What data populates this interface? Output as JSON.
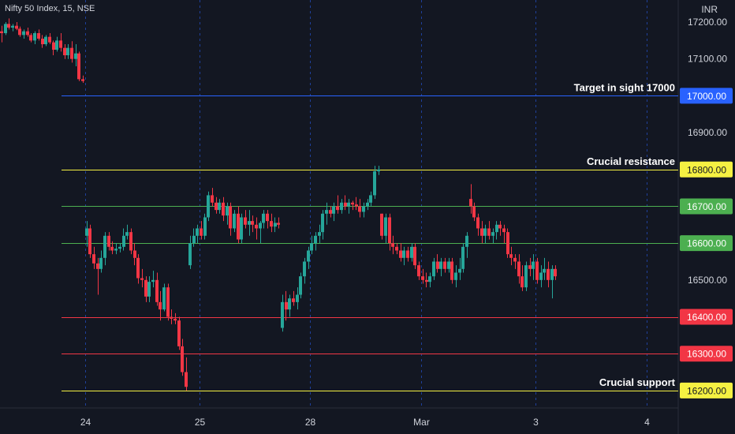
{
  "header": {
    "symbol_line": "Nifty 50 Index, 15, NSE",
    "currency": "INR"
  },
  "chart_data": {
    "type": "candlestick",
    "symbol": "Nifty 50 Index",
    "interval": "15",
    "exchange": "NSE",
    "currency": "INR",
    "ylim": [
      16170,
      17250
    ],
    "y_ticks": [
      "17200.00",
      "17100.00",
      "17000.00",
      "16900.00",
      "16800.00",
      "16700.00",
      "16600.00",
      "16500.00",
      "16400.00",
      "16300.00",
      "16200.00"
    ],
    "y_tick_values": [
      17200,
      17100,
      17000,
      16900,
      16800,
      16700,
      16600,
      16500,
      16400,
      16300,
      16200
    ],
    "x_ticks": [
      "24",
      "25",
      "28",
      "Mar",
      "3",
      "4"
    ],
    "x_tick_candle_index": [
      23,
      54,
      84,
      114,
      145,
      175
    ],
    "levels": [
      {
        "value": 17000,
        "label": "17000.00",
        "annotation": "Target in sight 17000",
        "color": "#2962ff",
        "text_color": "#ffffff"
      },
      {
        "value": 16800,
        "label": "16800.00",
        "annotation": "Crucial resistance",
        "color": "#f5f142",
        "text_color": "#131722"
      },
      {
        "value": 16700,
        "label": "16700.00",
        "annotation": "",
        "color": "#4caf50",
        "text_color": "#ffffff"
      },
      {
        "value": 16600,
        "label": "16600.00",
        "annotation": "",
        "color": "#4caf50",
        "text_color": "#ffffff"
      },
      {
        "value": 16400,
        "label": "16400.00",
        "annotation": "",
        "color": "#f23645",
        "text_color": "#ffffff"
      },
      {
        "value": 16300,
        "label": "16300.00",
        "annotation": "",
        "color": "#f23645",
        "text_color": "#ffffff"
      },
      {
        "value": 16200,
        "label": "16200.00",
        "annotation": "Crucial support",
        "color": "#f5f142",
        "text_color": "#131722"
      }
    ],
    "colors": {
      "up": "#26a69a",
      "down": "#f23645",
      "background": "#131722",
      "text": "#d1d4dc"
    },
    "candles": [
      [
        17175,
        17190,
        17145,
        17170
      ],
      [
        17170,
        17200,
        17165,
        17195
      ],
      [
        17195,
        17210,
        17180,
        17185
      ],
      [
        17185,
        17195,
        17175,
        17190
      ],
      [
        17190,
        17200,
        17178,
        17182
      ],
      [
        17182,
        17188,
        17160,
        17165
      ],
      [
        17165,
        17180,
        17155,
        17175
      ],
      [
        17175,
        17185,
        17160,
        17165
      ],
      [
        17165,
        17170,
        17145,
        17150
      ],
      [
        17150,
        17175,
        17140,
        17170
      ],
      [
        17170,
        17180,
        17150,
        17155
      ],
      [
        17155,
        17165,
        17130,
        17140
      ],
      [
        17140,
        17165,
        17135,
        17160
      ],
      [
        17160,
        17170,
        17140,
        17145
      ],
      [
        17145,
        17150,
        17110,
        17125
      ],
      [
        17125,
        17160,
        17120,
        17150
      ],
      [
        17150,
        17170,
        17120,
        17130
      ],
      [
        17130,
        17140,
        17100,
        17110
      ],
      [
        17110,
        17140,
        17100,
        17130
      ],
      [
        17130,
        17148,
        17090,
        17100
      ],
      [
        17100,
        17140,
        17080,
        17115
      ],
      [
        17115,
        17120,
        17040,
        17045
      ],
      [
        17045,
        17055,
        17035,
        17040
      ],
      [
        16620,
        16660,
        16590,
        16640
      ],
      [
        16640,
        16650,
        16560,
        16570
      ],
      [
        16570,
        16590,
        16530,
        16545
      ],
      [
        16545,
        16560,
        16460,
        16530
      ],
      [
        16530,
        16580,
        16520,
        16560
      ],
      [
        16560,
        16630,
        16540,
        16620
      ],
      [
        16620,
        16630,
        16580,
        16590
      ],
      [
        16590,
        16605,
        16570,
        16580
      ],
      [
        16580,
        16600,
        16570,
        16585
      ],
      [
        16585,
        16600,
        16575,
        16590
      ],
      [
        16590,
        16640,
        16580,
        16620
      ],
      [
        16620,
        16650,
        16610,
        16630
      ],
      [
        16630,
        16640,
        16570,
        16580
      ],
      [
        16580,
        16600,
        16540,
        16560
      ],
      [
        16560,
        16570,
        16490,
        16505
      ],
      [
        16505,
        16530,
        16480,
        16500
      ],
      [
        16500,
        16510,
        16440,
        16455
      ],
      [
        16455,
        16510,
        16440,
        16495
      ],
      [
        16495,
        16525,
        16480,
        16500
      ],
      [
        16500,
        16520,
        16430,
        16440
      ],
      [
        16440,
        16470,
        16390,
        16420
      ],
      [
        16420,
        16490,
        16415,
        16480
      ],
      [
        16480,
        16490,
        16390,
        16400
      ],
      [
        16400,
        16420,
        16380,
        16395
      ],
      [
        16395,
        16410,
        16380,
        16390
      ],
      [
        16390,
        16400,
        16310,
        16320
      ],
      [
        16320,
        16340,
        16240,
        16250
      ],
      [
        16250,
        16290,
        16200,
        16210
      ],
      [
        16540,
        16620,
        16530,
        16600
      ],
      [
        16600,
        16640,
        16590,
        16620
      ],
      [
        16620,
        16650,
        16600,
        16640
      ],
      [
        16640,
        16660,
        16610,
        16620
      ],
      [
        16620,
        16680,
        16610,
        16670
      ],
      [
        16670,
        16740,
        16660,
        16730
      ],
      [
        16730,
        16750,
        16700,
        16710
      ],
      [
        16710,
        16725,
        16680,
        16690
      ],
      [
        16690,
        16720,
        16680,
        16710
      ],
      [
        16710,
        16725,
        16660,
        16675
      ],
      [
        16675,
        16710,
        16650,
        16700
      ],
      [
        16700,
        16710,
        16620,
        16640
      ],
      [
        16640,
        16690,
        16630,
        16680
      ],
      [
        16680,
        16700,
        16600,
        16610
      ],
      [
        16610,
        16680,
        16600,
        16670
      ],
      [
        16670,
        16690,
        16640,
        16650
      ],
      [
        16650,
        16690,
        16620,
        16660
      ],
      [
        16660,
        16675,
        16630,
        16650
      ],
      [
        16650,
        16670,
        16610,
        16640
      ],
      [
        16640,
        16660,
        16600,
        16655
      ],
      [
        16655,
        16690,
        16640,
        16680
      ],
      [
        16680,
        16690,
        16640,
        16660
      ],
      [
        16660,
        16680,
        16630,
        16645
      ],
      [
        16645,
        16670,
        16630,
        16655
      ],
      [
        16655,
        16670,
        16640,
        16650
      ],
      [
        16370,
        16460,
        16360,
        16440
      ],
      [
        16440,
        16470,
        16390,
        16420
      ],
      [
        16420,
        16460,
        16400,
        16450
      ],
      [
        16450,
        16470,
        16430,
        16440
      ],
      [
        16440,
        16480,
        16420,
        16460
      ],
      [
        16460,
        16520,
        16450,
        16510
      ],
      [
        16510,
        16560,
        16490,
        16550
      ],
      [
        16550,
        16590,
        16530,
        16580
      ],
      [
        16580,
        16620,
        16570,
        16600
      ],
      [
        16600,
        16630,
        16580,
        16620
      ],
      [
        16620,
        16650,
        16600,
        16630
      ],
      [
        16630,
        16690,
        16610,
        16680
      ],
      [
        16680,
        16710,
        16650,
        16690
      ],
      [
        16690,
        16700,
        16670,
        16680
      ],
      [
        16680,
        16710,
        16660,
        16700
      ],
      [
        16700,
        16730,
        16680,
        16690
      ],
      [
        16690,
        16720,
        16680,
        16710
      ],
      [
        16710,
        16730,
        16690,
        16700
      ],
      [
        16700,
        16720,
        16680,
        16710
      ],
      [
        16710,
        16715,
        16690,
        16705
      ],
      [
        16705,
        16725,
        16690,
        16700
      ],
      [
        16700,
        16720,
        16670,
        16685
      ],
      [
        16685,
        16710,
        16670,
        16700
      ],
      [
        16700,
        16720,
        16690,
        16710
      ],
      [
        16710,
        16740,
        16700,
        16730
      ],
      [
        16730,
        16810,
        16720,
        16795
      ],
      [
        16795,
        16810,
        16785,
        16800
      ],
      [
        16680,
        16680,
        16610,
        16620
      ],
      [
        16620,
        16680,
        16600,
        16670
      ],
      [
        16670,
        16680,
        16580,
        16600
      ],
      [
        16600,
        16620,
        16570,
        16590
      ],
      [
        16590,
        16600,
        16570,
        16580
      ],
      [
        16580,
        16600,
        16550,
        16560
      ],
      [
        16560,
        16590,
        16540,
        16580
      ],
      [
        16580,
        16590,
        16550,
        16560
      ],
      [
        16560,
        16600,
        16550,
        16590
      ],
      [
        16590,
        16600,
        16530,
        16540
      ],
      [
        16540,
        16550,
        16500,
        16510
      ],
      [
        16510,
        16530,
        16490,
        16500
      ],
      [
        16500,
        16520,
        16480,
        16495
      ],
      [
        16495,
        16520,
        16480,
        16510
      ],
      [
        16510,
        16560,
        16500,
        16550
      ],
      [
        16550,
        16570,
        16520,
        16530
      ],
      [
        16530,
        16560,
        16510,
        16550
      ],
      [
        16550,
        16560,
        16520,
        16530
      ],
      [
        16530,
        16560,
        16520,
        16550
      ],
      [
        16550,
        16560,
        16490,
        16500
      ],
      [
        16500,
        16540,
        16480,
        16520
      ],
      [
        16520,
        16560,
        16500,
        16530
      ],
      [
        16530,
        16600,
        16520,
        16590
      ],
      [
        16590,
        16630,
        16560,
        16620
      ],
      [
        16720,
        16760,
        16680,
        16700
      ],
      [
        16700,
        16710,
        16660,
        16670
      ],
      [
        16670,
        16680,
        16620,
        16640
      ],
      [
        16640,
        16660,
        16600,
        16620
      ],
      [
        16620,
        16650,
        16600,
        16640
      ],
      [
        16640,
        16660,
        16610,
        16620
      ],
      [
        16620,
        16640,
        16600,
        16630
      ],
      [
        16630,
        16660,
        16610,
        16650
      ],
      [
        16650,
        16660,
        16620,
        16640
      ],
      [
        16640,
        16650,
        16600,
        16630
      ],
      [
        16630,
        16640,
        16560,
        16570
      ],
      [
        16570,
        16590,
        16540,
        16560
      ],
      [
        16560,
        16570,
        16530,
        16550
      ],
      [
        16550,
        16570,
        16490,
        16510
      ],
      [
        16510,
        16540,
        16470,
        16480
      ],
      [
        16480,
        16550,
        16470,
        16540
      ],
      [
        16540,
        16560,
        16510,
        16530
      ],
      [
        16530,
        16570,
        16500,
        16550
      ],
      [
        16550,
        16560,
        16490,
        16500
      ],
      [
        16500,
        16540,
        16480,
        16520
      ],
      [
        16520,
        16560,
        16500,
        16530
      ],
      [
        16530,
        16550,
        16480,
        16500
      ],
      [
        16500,
        16540,
        16450,
        16530
      ],
      [
        16530,
        16540,
        16500,
        16510
      ]
    ]
  }
}
